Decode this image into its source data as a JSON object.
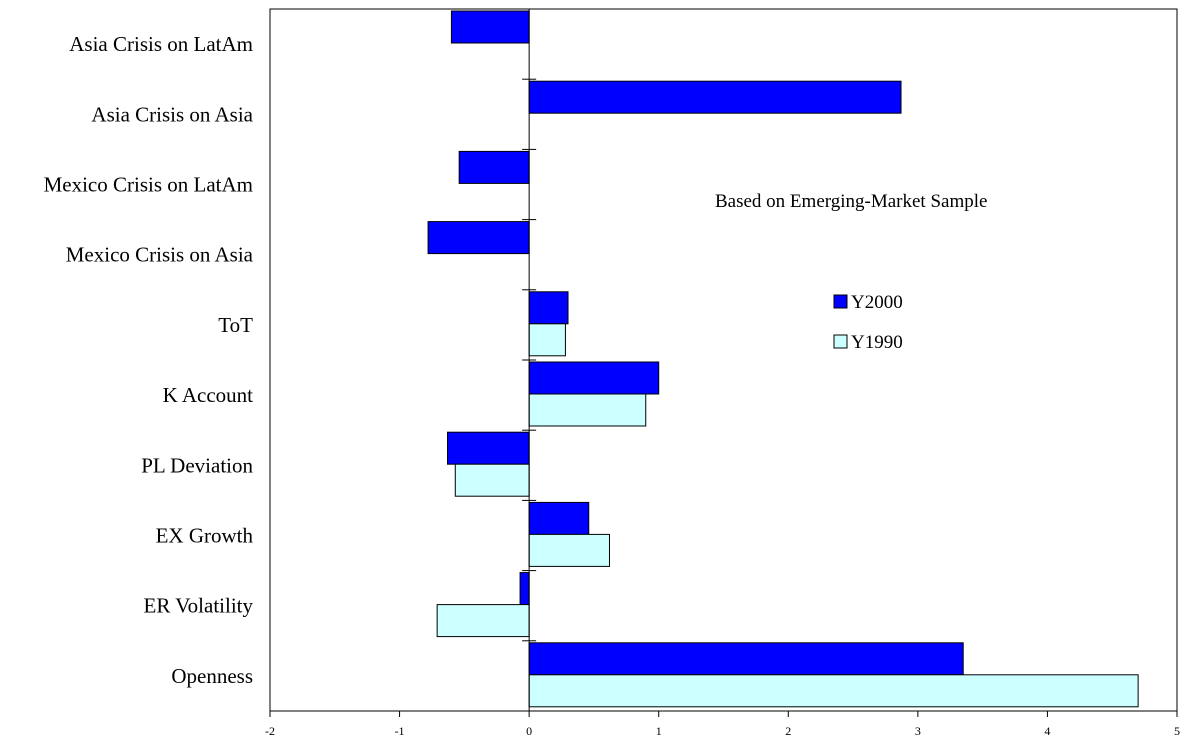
{
  "chart_data": {
    "type": "bar",
    "orientation": "horizontal",
    "categories": [
      "Asia Crisis on LatAm",
      "Asia Crisis on Asia",
      "Mexico Crisis on LatAm",
      "Mexico Crisis on Asia",
      "ToT",
      "K Account",
      "PL Deviation",
      "EX Growth",
      "ER Volatility",
      "Openness"
    ],
    "series": [
      {
        "name": "Y2000",
        "color": "#0000ff",
        "values": [
          -0.6,
          2.87,
          -0.54,
          -0.78,
          0.3,
          1.0,
          -0.63,
          0.46,
          -0.07,
          3.35
        ]
      },
      {
        "name": "Y1990",
        "color": "#ccffff",
        "values": [
          null,
          null,
          null,
          null,
          0.28,
          0.9,
          -0.57,
          0.62,
          -0.71,
          4.7
        ]
      }
    ],
    "xlim": [
      -2,
      5
    ],
    "xticks": [
      "-2",
      "-1",
      "0",
      "1",
      "2",
      "3",
      "4",
      "5"
    ],
    "annotation": "Based on Emerging-Market Sample",
    "legend": [
      "Y2000",
      "Y1990"
    ],
    "legend_position": "right-middle",
    "grid": false,
    "xlabel": "",
    "ylabel": "",
    "title": ""
  }
}
